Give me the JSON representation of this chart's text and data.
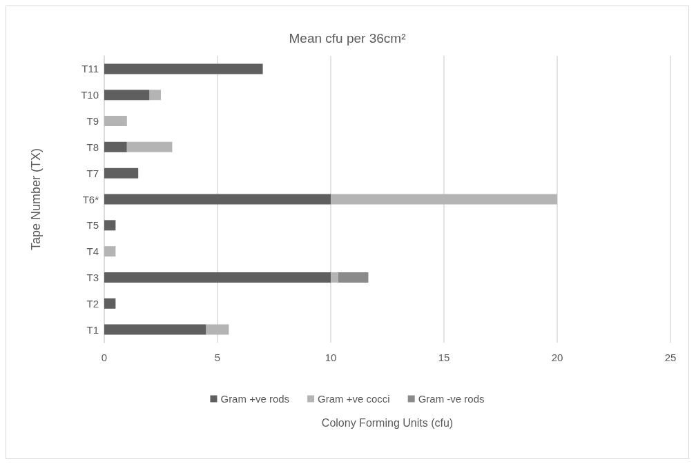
{
  "chart_data": {
    "type": "bar",
    "orientation": "horizontal",
    "stacked": true,
    "title": "Mean cfu per 36cm²",
    "xlabel": "Colony Forming Units (cfu)",
    "ylabel": "Tape Number (TX)",
    "categories": [
      "T11",
      "T10",
      "T9",
      "T8",
      "T7",
      "T6*",
      "T5",
      "T4",
      "T3",
      "T2",
      "T1"
    ],
    "series": [
      {
        "name": "Gram +ve rods",
        "color": "#5f5f5f",
        "values": [
          7,
          2,
          null,
          1,
          1.5,
          10,
          0.5,
          null,
          10,
          0.5,
          4.5
        ]
      },
      {
        "name": "Gram +ve cocci",
        "color": "#b4b4b4",
        "values": [
          null,
          0.5,
          1,
          2,
          null,
          10,
          null,
          0.5,
          0.33,
          null,
          1
        ]
      },
      {
        "name": "Gram -ve rods",
        "color": "#8a8a8a",
        "values": [
          null,
          null,
          null,
          null,
          null,
          null,
          null,
          null,
          1.33,
          null,
          null
        ]
      }
    ],
    "xlim": [
      0,
      25
    ],
    "xticks": [
      0,
      5,
      10,
      15,
      20,
      25
    ],
    "grid": "x",
    "legend": "bottom"
  }
}
